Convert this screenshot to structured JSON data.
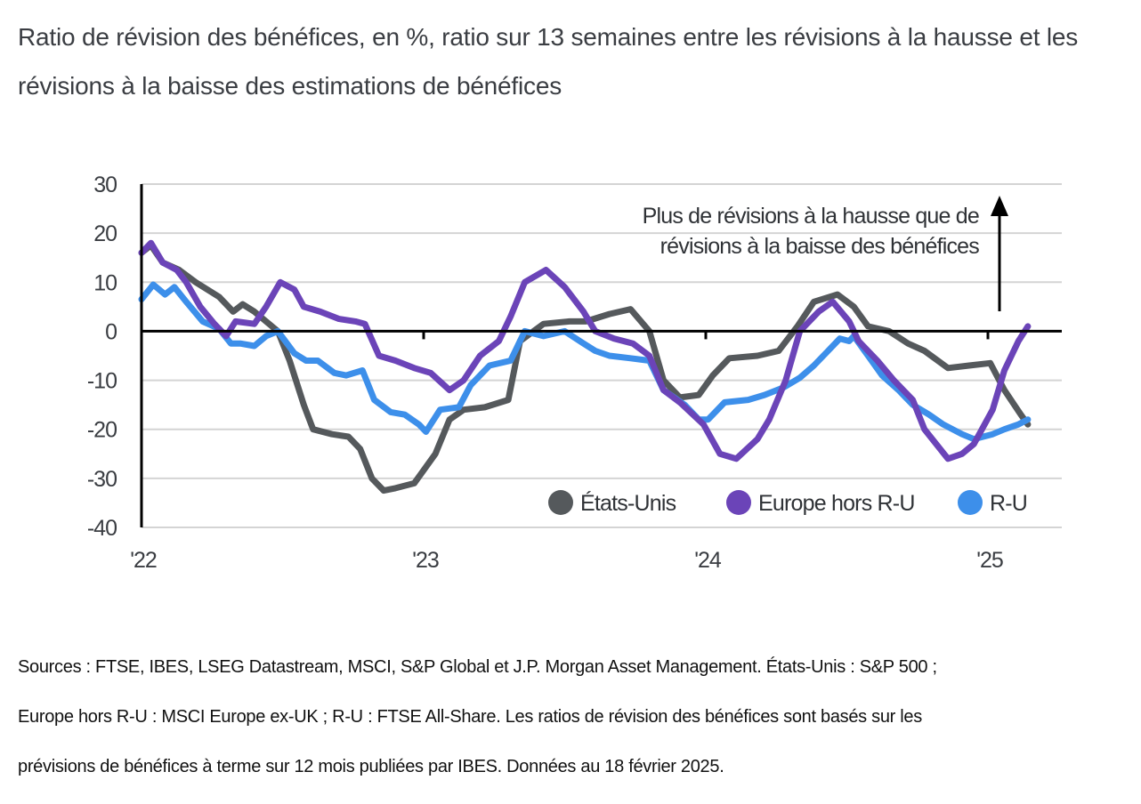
{
  "title": "Ratio de révision des bénéfices, en %, ratio sur 13 semaines entre les révisions à la hausse et les révisions à la baisse des estimations de bénéfices",
  "notes": {
    "line1": "Sources : FTSE, IBES, LSEG Datastream, MSCI, S&P Global et J.P. Morgan Asset Management. États-Unis : S&P 500 ;",
    "line2": "Europe hors R-U : MSCI Europe ex-UK ; R-U : FTSE All-Share. Les ratios de révision des bénéfices sont basés sur les",
    "line3": "prévisions de bénéfices à terme sur 12 mois publiées par IBES. Données au 18 février 2025."
  },
  "chart_data": {
    "type": "line",
    "title": "Ratio de révision des bénéfices, en %",
    "xlabel": "",
    "ylabel": "",
    "x_unit": "months since Jan 2022",
    "xlim": [
      0,
      39.1
    ],
    "ylim": [
      -40,
      30
    ],
    "yticks": [
      30,
      20,
      10,
      0,
      -10,
      -20,
      -30,
      -40
    ],
    "ytick_labels": [
      "30",
      "20",
      "10",
      "0",
      "-10",
      "-20",
      "-30",
      "-40"
    ],
    "xticks": [
      0,
      12,
      24,
      36
    ],
    "xtick_labels": [
      "'22",
      "'23",
      "'24",
      "'25"
    ],
    "grid": true,
    "legend_position": "bottom-right",
    "annotation": {
      "line1": "Plus de révisions à la hausse que de",
      "line2": "révisions à la baisse des bénéfices",
      "arrow": "up"
    },
    "series": [
      {
        "name": "États-Unis",
        "color": "#55595c",
        "points": [
          [
            0,
            16
          ],
          [
            0.4,
            17.5
          ],
          [
            0.9,
            14
          ],
          [
            1.6,
            12.5
          ],
          [
            2.3,
            10
          ],
          [
            3.3,
            7
          ],
          [
            3.9,
            4
          ],
          [
            4.3,
            5.5
          ],
          [
            4.8,
            4
          ],
          [
            5.3,
            2
          ],
          [
            5.8,
            0
          ],
          [
            6.3,
            -6
          ],
          [
            6.9,
            -15
          ],
          [
            7.3,
            -20
          ],
          [
            8.1,
            -21
          ],
          [
            8.8,
            -21.5
          ],
          [
            9.3,
            -24
          ],
          [
            9.8,
            -30
          ],
          [
            10.3,
            -32.5
          ],
          [
            10.8,
            -32
          ],
          [
            11.6,
            -31
          ],
          [
            12.5,
            -25
          ],
          [
            13.1,
            -18
          ],
          [
            13.7,
            -16
          ],
          [
            14.6,
            -15.5
          ],
          [
            15.6,
            -14
          ],
          [
            16.1,
            -2
          ],
          [
            17.1,
            1.5
          ],
          [
            18.2,
            2
          ],
          [
            18.9,
            2
          ],
          [
            19.9,
            3.5
          ],
          [
            20.8,
            4.5
          ],
          [
            21.6,
            0
          ],
          [
            22.2,
            -10
          ],
          [
            22.9,
            -13.5
          ],
          [
            23.7,
            -13
          ],
          [
            24.3,
            -9
          ],
          [
            25.0,
            -5.5
          ],
          [
            26.2,
            -5
          ],
          [
            27.1,
            -4
          ],
          [
            27.9,
            1
          ],
          [
            28.6,
            6
          ],
          [
            29.6,
            7.5
          ],
          [
            30.3,
            5
          ],
          [
            30.9,
            1
          ],
          [
            31.8,
            0
          ],
          [
            32.6,
            -2.5
          ],
          [
            33.3,
            -4
          ],
          [
            34.3,
            -7.5
          ],
          [
            35.2,
            -7
          ],
          [
            36.1,
            -6.5
          ],
          [
            36.7,
            -12
          ],
          [
            37.4,
            -17
          ],
          [
            37.7,
            -19
          ]
        ]
      },
      {
        "name": "Europe hors R-U",
        "color": "#6b44b8",
        "points": [
          [
            0,
            16
          ],
          [
            0.4,
            18
          ],
          [
            0.9,
            14
          ],
          [
            1.5,
            12.5
          ],
          [
            1.9,
            10
          ],
          [
            2.5,
            5
          ],
          [
            3.1,
            1.5
          ],
          [
            3.6,
            -1
          ],
          [
            4.0,
            2
          ],
          [
            4.8,
            1.5
          ],
          [
            5.3,
            5
          ],
          [
            5.9,
            10
          ],
          [
            6.5,
            8.5
          ],
          [
            6.9,
            5
          ],
          [
            7.6,
            4
          ],
          [
            8.4,
            2.5
          ],
          [
            9.1,
            2
          ],
          [
            9.5,
            1.5
          ],
          [
            10.1,
            -5
          ],
          [
            10.8,
            -6
          ],
          [
            11.6,
            -7.5
          ],
          [
            12.3,
            -8.5
          ],
          [
            13.1,
            -12
          ],
          [
            13.7,
            -10
          ],
          [
            14.4,
            -5
          ],
          [
            15.2,
            -2
          ],
          [
            15.7,
            3
          ],
          [
            16.3,
            10
          ],
          [
            17.2,
            12.5
          ],
          [
            18.0,
            9
          ],
          [
            18.8,
            4
          ],
          [
            19.3,
            0
          ],
          [
            20.1,
            -1.5
          ],
          [
            20.9,
            -2.5
          ],
          [
            21.6,
            -5
          ],
          [
            22.2,
            -12
          ],
          [
            22.9,
            -14.5
          ],
          [
            23.9,
            -19
          ],
          [
            24.6,
            -25
          ],
          [
            25.3,
            -26
          ],
          [
            26.2,
            -22
          ],
          [
            26.7,
            -18
          ],
          [
            27.4,
            -10
          ],
          [
            28.0,
            0
          ],
          [
            28.8,
            4
          ],
          [
            29.4,
            6
          ],
          [
            30.1,
            2
          ],
          [
            30.5,
            -2
          ],
          [
            31.3,
            -6
          ],
          [
            32.0,
            -10
          ],
          [
            32.8,
            -14
          ],
          [
            33.3,
            -20
          ],
          [
            34.3,
            -26
          ],
          [
            34.9,
            -25
          ],
          [
            35.4,
            -23
          ],
          [
            36.2,
            -16
          ],
          [
            36.7,
            -8
          ],
          [
            37.3,
            -2
          ],
          [
            37.7,
            1
          ]
        ]
      },
      {
        "name": "R-U",
        "color": "#3d8fea",
        "points": [
          [
            0,
            6.5
          ],
          [
            0.5,
            9.5
          ],
          [
            1.0,
            7.5
          ],
          [
            1.4,
            9
          ],
          [
            1.9,
            6
          ],
          [
            2.6,
            2
          ],
          [
            3.3,
            0.5
          ],
          [
            3.8,
            -2.5
          ],
          [
            4.2,
            -2.5
          ],
          [
            4.8,
            -3
          ],
          [
            5.3,
            -1
          ],
          [
            5.8,
            0
          ],
          [
            6.5,
            -4.5
          ],
          [
            7.0,
            -6
          ],
          [
            7.5,
            -6
          ],
          [
            8.2,
            -8.5
          ],
          [
            8.7,
            -9
          ],
          [
            9.4,
            -8
          ],
          [
            9.9,
            -14
          ],
          [
            10.6,
            -16.5
          ],
          [
            11.2,
            -17
          ],
          [
            11.8,
            -19
          ],
          [
            12.1,
            -20.5
          ],
          [
            12.7,
            -16
          ],
          [
            13.5,
            -15.5
          ],
          [
            14.0,
            -11
          ],
          [
            14.8,
            -7
          ],
          [
            15.7,
            -6
          ],
          [
            16.3,
            0
          ],
          [
            17.1,
            -1
          ],
          [
            18.0,
            0
          ],
          [
            18.8,
            -2.5
          ],
          [
            19.3,
            -4
          ],
          [
            19.9,
            -5
          ],
          [
            20.8,
            -5.5
          ],
          [
            21.6,
            -6
          ],
          [
            22.2,
            -12
          ],
          [
            23.1,
            -15
          ],
          [
            23.7,
            -18
          ],
          [
            24.1,
            -18
          ],
          [
            24.8,
            -14.5
          ],
          [
            25.8,
            -14
          ],
          [
            26.5,
            -13
          ],
          [
            27.3,
            -11.5
          ],
          [
            28.0,
            -9.5
          ],
          [
            28.6,
            -7
          ],
          [
            29.2,
            -4
          ],
          [
            29.7,
            -1.5
          ],
          [
            30.1,
            -2
          ],
          [
            30.3,
            -1
          ],
          [
            30.9,
            -5
          ],
          [
            31.5,
            -9
          ],
          [
            32.2,
            -12
          ],
          [
            32.8,
            -15
          ],
          [
            33.5,
            -17
          ],
          [
            34.1,
            -19
          ],
          [
            34.9,
            -21
          ],
          [
            35.4,
            -22
          ],
          [
            36.2,
            -21
          ],
          [
            36.7,
            -20
          ],
          [
            37.3,
            -19
          ],
          [
            37.7,
            -18
          ]
        ]
      }
    ]
  }
}
